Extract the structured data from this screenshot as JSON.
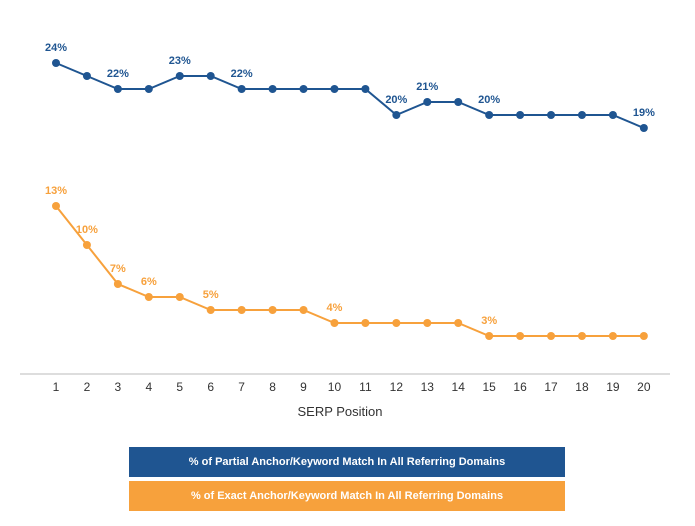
{
  "chart_data": {
    "type": "line",
    "xlabel": "SERP Position",
    "ylabel": "",
    "x": [
      1,
      2,
      3,
      4,
      5,
      6,
      7,
      8,
      9,
      10,
      11,
      12,
      13,
      14,
      15,
      16,
      17,
      18,
      19,
      20
    ],
    "series": [
      {
        "name": "% of Partial Anchor/Keyword Match In All Referring Domains",
        "color": "#1f5591",
        "values": [
          24,
          23,
          22,
          22,
          23,
          23,
          22,
          22,
          22,
          22,
          22,
          20,
          21,
          21,
          20,
          20,
          20,
          20,
          20,
          19
        ],
        "data_labels": [
          {
            "x": 1,
            "text": "24%"
          },
          {
            "x": 3,
            "text": "22%"
          },
          {
            "x": 5,
            "text": "23%"
          },
          {
            "x": 7,
            "text": "22%"
          },
          {
            "x": 12,
            "text": "20%"
          },
          {
            "x": 13,
            "text": "21%"
          },
          {
            "x": 15,
            "text": "20%"
          },
          {
            "x": 20,
            "text": "19%"
          }
        ]
      },
      {
        "name": "% of Exact Anchor/Keyword Match In All Referring Domains",
        "color": "#f7a13c",
        "values": [
          13,
          10,
          7,
          6,
          6,
          5,
          5,
          5,
          5,
          4,
          4,
          4,
          4,
          4,
          3,
          3,
          3,
          3,
          3,
          3
        ],
        "data_labels": [
          {
            "x": 1,
            "text": "13%"
          },
          {
            "x": 2,
            "text": "10%"
          },
          {
            "x": 3,
            "text": "7%"
          },
          {
            "x": 4,
            "text": "6%"
          },
          {
            "x": 6,
            "text": "5%"
          },
          {
            "x": 10,
            "text": "4%"
          },
          {
            "x": 15,
            "text": "3%"
          }
        ]
      }
    ],
    "grid": false,
    "legend_placement": "bottom-center"
  },
  "legend": {
    "partial_label": "% of Partial Anchor/Keyword Match In All Referring Domains",
    "exact_label": "% of Exact Anchor/Keyword Match In All Referring Domains"
  }
}
